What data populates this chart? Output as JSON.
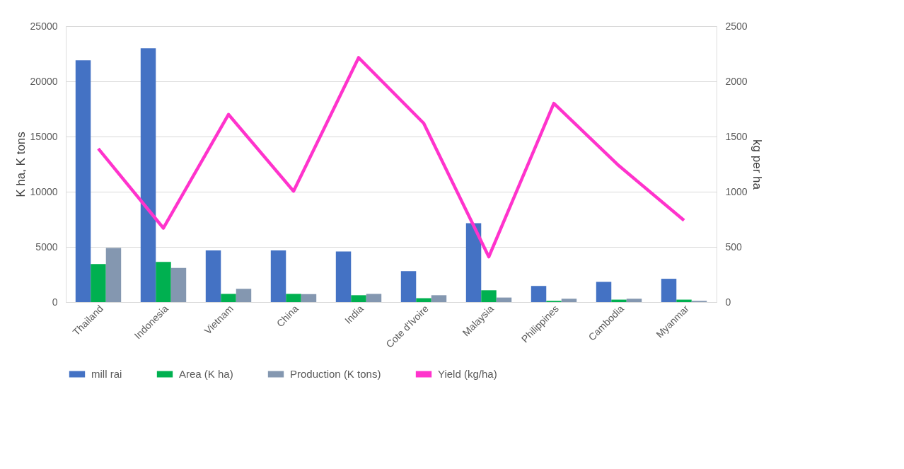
{
  "chart_data": {
    "type": "bar",
    "categories": [
      "Thailand",
      "Indonesia",
      "Vietnam",
      "China",
      "India",
      "Cote d'Ivoire",
      "Malaysia",
      "Philippines",
      "Cambodia",
      "Myanmar"
    ],
    "ylabel": "K ha, K tons",
    "y2label": "kg per ha",
    "ylim": [
      0,
      25000
    ],
    "yticks": [
      0,
      5000,
      10000,
      15000,
      20000,
      25000
    ],
    "y2lim": [
      0,
      2500
    ],
    "y2ticks": [
      0,
      500,
      1000,
      1500,
      2000,
      2500
    ],
    "grid": "y",
    "legend": "bottom",
    "series": [
      {
        "name": "mill rai",
        "color": "#4472c4",
        "values": [
          21900,
          23000,
          4680,
          4680,
          4590,
          2810,
          7150,
          1460,
          1830,
          2110
        ]
      },
      {
        "name": "Area (K ha)",
        "color": "#00b050",
        "values": [
          3450,
          3640,
          740,
          740,
          620,
          350,
          1070,
          110,
          220,
          220
        ]
      },
      {
        "name": "Production (K tons)",
        "color": "#8497b0",
        "values": [
          4900,
          3090,
          1200,
          720,
          740,
          620,
          410,
          300,
          300,
          110
        ]
      },
      {
        "name": "Yield (kg/ha)",
        "color": "#ff33cc",
        "type": "line",
        "axis": "y2",
        "line_style": "solid",
        "marker": "none",
        "values": [
          1390,
          670,
          1700,
          1005,
          2215,
          1620,
          410,
          1800,
          1235,
          740
        ]
      }
    ]
  }
}
